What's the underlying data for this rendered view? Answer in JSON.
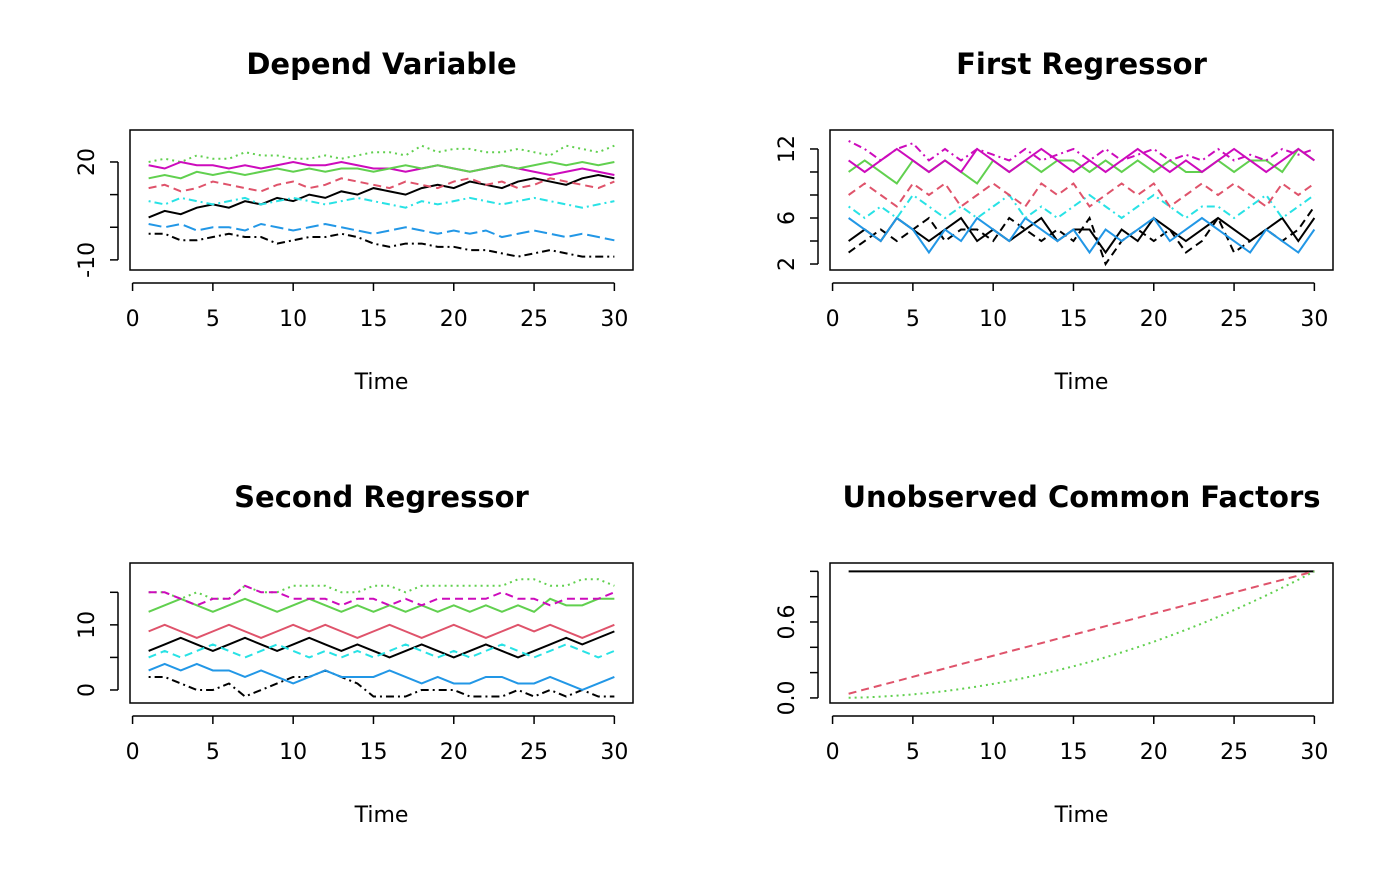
{
  "chart_data": [
    {
      "type": "line",
      "title": "Depend Variable",
      "x_label": "Time",
      "x": [
        1,
        2,
        3,
        4,
        5,
        6,
        7,
        8,
        9,
        10,
        11,
        12,
        13,
        14,
        15,
        16,
        17,
        18,
        19,
        20,
        21,
        22,
        23,
        24,
        25,
        26,
        27,
        28,
        29,
        30
      ],
      "xlim": [
        -0.16,
        31.16
      ],
      "xticks": [
        0,
        5,
        10,
        15,
        20,
        25,
        30
      ],
      "ylim": [
        -13.1,
        29.8
      ],
      "yticks": [
        -10,
        20
      ],
      "yminor_ticks": [
        0,
        10
      ],
      "series": [
        {
          "color": "#000000",
          "dash": "solid",
          "values": [
            3,
            5,
            4,
            6,
            7,
            6,
            8,
            7,
            9,
            8,
            10,
            9,
            11,
            10,
            12,
            11,
            10,
            12,
            13,
            12,
            14,
            13,
            12,
            14,
            15,
            14,
            13,
            15,
            16,
            15
          ]
        },
        {
          "color": "#DF536B",
          "dash": "dashed",
          "values": [
            12,
            13,
            11,
            12,
            14,
            13,
            12,
            11,
            13,
            14,
            12,
            13,
            15,
            14,
            13,
            12,
            14,
            13,
            12,
            14,
            15,
            13,
            14,
            12,
            13,
            15,
            14,
            13,
            12,
            14
          ]
        },
        {
          "color": "#61D04F",
          "dash": "dotted",
          "values": [
            20,
            21,
            20,
            22,
            21,
            21,
            23,
            22,
            22,
            21,
            21,
            22,
            21,
            22,
            23,
            23,
            22,
            25,
            23,
            24,
            24,
            23,
            23,
            24,
            23,
            22,
            25,
            24,
            23,
            25
          ]
        },
        {
          "color": "#2297E6",
          "dash": "longdash",
          "values": [
            1,
            0,
            1,
            -1,
            0,
            0,
            -1,
            1,
            0,
            -1,
            0,
            1,
            0,
            -1,
            -2,
            -1,
            0,
            -1,
            -2,
            -1,
            -2,
            -1,
            -3,
            -2,
            -1,
            -2,
            -3,
            -2,
            -3,
            -4
          ]
        },
        {
          "color": "#28E2E5",
          "dash": "dotdash",
          "values": [
            8,
            7,
            9,
            8,
            7,
            8,
            9,
            7,
            8,
            9,
            8,
            7,
            8,
            9,
            8,
            7,
            6,
            8,
            7,
            8,
            9,
            8,
            7,
            8,
            9,
            8,
            7,
            6,
            7,
            8
          ]
        },
        {
          "color": "#CD0BBC",
          "dash": "solid",
          "values": [
            19,
            18,
            20,
            19,
            19,
            18,
            19,
            18,
            19,
            20,
            19,
            19,
            20,
            19,
            18,
            18,
            17,
            18,
            19,
            18,
            17,
            18,
            19,
            18,
            17,
            16,
            17,
            18,
            17,
            16
          ]
        },
        {
          "color": "#000000",
          "dash": "dotdash",
          "values": [
            -2,
            -2,
            -4,
            -4,
            -3,
            -2,
            -3,
            -3,
            -5,
            -4,
            -3,
            -3,
            -2,
            -3,
            -5,
            -6,
            -5,
            -5,
            -6,
            -6,
            -7,
            -7,
            -8,
            -9,
            -8,
            -7,
            -8,
            -9,
            -9,
            -9
          ]
        },
        {
          "color": "#61D04F",
          "dash": "solid",
          "values": [
            15,
            16,
            15,
            17,
            16,
            17,
            16,
            17,
            18,
            17,
            18,
            17,
            18,
            18,
            17,
            18,
            19,
            18,
            19,
            18,
            17,
            18,
            19,
            18,
            19,
            20,
            19,
            20,
            19,
            20
          ]
        }
      ]
    },
    {
      "type": "line",
      "title": "First Regressor",
      "x_label": "Time",
      "x": [
        1,
        2,
        3,
        4,
        5,
        6,
        7,
        8,
        9,
        10,
        11,
        12,
        13,
        14,
        15,
        16,
        17,
        18,
        19,
        20,
        21,
        22,
        23,
        24,
        25,
        26,
        27,
        28,
        29,
        30
      ],
      "xlim": [
        -0.16,
        31.16
      ],
      "xticks": [
        0,
        5,
        10,
        15,
        20,
        25,
        30
      ],
      "ylim": [
        1.48,
        13.65
      ],
      "yticks": [
        2,
        6,
        12
      ],
      "yminor_ticks": [
        4,
        8,
        10
      ],
      "series": [
        {
          "color": "#000000",
          "dash": "solid",
          "values": [
            4,
            5,
            4,
            6,
            5,
            4,
            5,
            6,
            4,
            5,
            4,
            5,
            6,
            4,
            5,
            5,
            3,
            5,
            4,
            6,
            5,
            4,
            5,
            6,
            5,
            4,
            5,
            6,
            4,
            6
          ]
        },
        {
          "color": "#000000",
          "dash": "dashed",
          "values": [
            3,
            4,
            5,
            4,
            5,
            6,
            4,
            5,
            5,
            4,
            6,
            5,
            4,
            5,
            4,
            6,
            2,
            4,
            5,
            4,
            5,
            3,
            4,
            6,
            3,
            4,
            5,
            4,
            5,
            7
          ]
        },
        {
          "color": "#2297E6",
          "dash": "solid",
          "values": [
            6,
            5,
            4,
            6,
            5,
            3,
            5,
            4,
            6,
            5,
            4,
            6,
            5,
            4,
            5,
            3,
            5,
            4,
            5,
            6,
            4,
            5,
            6,
            5,
            4,
            3,
            5,
            4,
            3,
            5
          ]
        },
        {
          "color": "#28E2E5",
          "dash": "dotdash",
          "values": [
            7,
            6,
            7,
            6,
            8,
            7,
            6,
            7,
            6,
            7,
            8,
            6,
            7,
            6,
            7,
            8,
            7,
            6,
            7,
            8,
            7,
            6,
            7,
            7,
            6,
            7,
            8,
            6,
            7,
            8
          ]
        },
        {
          "color": "#DF536B",
          "dash": "dashed",
          "values": [
            8,
            9,
            8,
            7,
            9,
            8,
            9,
            7,
            8,
            9,
            8,
            7,
            9,
            8,
            9,
            7,
            8,
            9,
            8,
            9,
            7,
            8,
            9,
            8,
            9,
            8,
            7,
            9,
            8,
            9
          ]
        },
        {
          "color": "#61D04F",
          "dash": "solid",
          "values": [
            10,
            11,
            10,
            9,
            11,
            10,
            11,
            10,
            9,
            11,
            10,
            11,
            10,
            11,
            11,
            10,
            11,
            10,
            11,
            10,
            11,
            10,
            10,
            11,
            10,
            11,
            11,
            10,
            12,
            11
          ]
        },
        {
          "color": "#CD0BBC",
          "dash": "solid",
          "values": [
            11,
            10,
            11,
            12,
            11,
            10,
            11,
            10,
            12,
            11,
            10,
            11,
            12,
            11,
            10,
            11,
            10,
            11,
            12,
            11,
            10,
            11,
            10,
            11,
            12,
            11,
            10,
            11,
            12,
            11
          ]
        },
        {
          "color": "#CD0BBC",
          "dash": "dotdash",
          "values": [
            12.7,
            12,
            11,
            12,
            12.5,
            11,
            12,
            11,
            12,
            11.5,
            11,
            12,
            11,
            11.5,
            12,
            11,
            12,
            11,
            11.5,
            12,
            11,
            11.5,
            11,
            12,
            11,
            11.5,
            11,
            12,
            11.5,
            12
          ]
        }
      ]
    },
    {
      "type": "line",
      "title": "Second Regressor",
      "x_label": "Time",
      "x": [
        1,
        2,
        3,
        4,
        5,
        6,
        7,
        8,
        9,
        10,
        11,
        12,
        13,
        14,
        15,
        16,
        17,
        18,
        19,
        20,
        21,
        22,
        23,
        24,
        25,
        26,
        27,
        28,
        29,
        30
      ],
      "xlim": [
        -0.16,
        31.16
      ],
      "xticks": [
        0,
        5,
        10,
        15,
        20,
        25,
        30
      ],
      "ylim": [
        -2,
        19.5
      ],
      "yticks": [
        0,
        10
      ],
      "yminor_ticks": [
        5,
        15
      ],
      "series": [
        {
          "color": "#000000",
          "dash": "solid",
          "values": [
            6,
            7,
            8,
            7,
            6,
            7,
            8,
            7,
            6,
            7,
            8,
            7,
            6,
            7,
            6,
            5,
            6,
            7,
            6,
            5,
            6,
            7,
            6,
            5,
            6,
            7,
            8,
            7,
            8,
            9
          ]
        },
        {
          "color": "#000000",
          "dash": "dotdash",
          "values": [
            2,
            2,
            1,
            0,
            0,
            1,
            -1,
            0,
            1,
            2,
            2,
            3,
            2,
            1,
            -1,
            -1,
            -1,
            0,
            0,
            0,
            -1,
            -1,
            -1,
            0,
            -1,
            0,
            -1,
            0,
            -1,
            -1
          ]
        },
        {
          "color": "#2297E6",
          "dash": "solid",
          "values": [
            3,
            4,
            3,
            4,
            3,
            3,
            2,
            3,
            2,
            1,
            2,
            3,
            2,
            2,
            2,
            3,
            2,
            1,
            2,
            1,
            1,
            2,
            2,
            1,
            1,
            2,
            1,
            0,
            1,
            2
          ]
        },
        {
          "color": "#28E2E5",
          "dash": "dashed",
          "values": [
            5,
            6,
            5,
            6,
            7,
            6,
            5,
            6,
            7,
            6,
            5,
            6,
            5,
            6,
            5,
            6,
            7,
            6,
            5,
            6,
            5,
            6,
            7,
            6,
            5,
            6,
            7,
            6,
            5,
            6
          ]
        },
        {
          "color": "#DF536B",
          "dash": "solid",
          "values": [
            9,
            10,
            9,
            8,
            9,
            10,
            9,
            8,
            9,
            10,
            9,
            10,
            9,
            8,
            9,
            10,
            9,
            8,
            9,
            10,
            9,
            8,
            9,
            10,
            9,
            10,
            9,
            8,
            9,
            10
          ]
        },
        {
          "color": "#61D04F",
          "dash": "solid",
          "values": [
            12,
            13,
            14,
            13,
            12,
            13,
            14,
            13,
            12,
            13,
            14,
            13,
            12,
            13,
            12,
            13,
            12,
            13,
            12,
            13,
            12,
            13,
            12,
            13,
            12,
            14,
            13,
            13,
            14,
            14
          ]
        },
        {
          "color": "#61D04F",
          "dash": "dotted",
          "values": [
            15,
            15,
            14,
            15,
            14,
            14,
            16,
            15,
            15,
            16,
            16,
            16,
            15,
            15,
            16,
            16,
            15,
            16,
            16,
            16,
            16,
            16,
            16,
            17,
            17,
            16,
            16,
            17,
            17,
            16
          ]
        },
        {
          "color": "#CD0BBC",
          "dash": "dashed",
          "values": [
            15,
            15,
            14,
            13,
            14,
            14,
            16,
            15,
            15,
            14,
            14,
            14,
            13,
            14,
            14,
            13,
            14,
            13,
            14,
            14,
            14,
            14,
            15,
            14,
            14,
            13,
            14,
            14,
            14,
            15
          ]
        }
      ]
    },
    {
      "type": "line",
      "title": "Unobserved Common Factors",
      "x_label": "Time",
      "x": [
        1,
        2,
        3,
        4,
        5,
        6,
        7,
        8,
        9,
        10,
        11,
        12,
        13,
        14,
        15,
        16,
        17,
        18,
        19,
        20,
        21,
        22,
        23,
        24,
        25,
        26,
        27,
        28,
        29,
        30
      ],
      "xlim": [
        -0.16,
        31.16
      ],
      "xticks": [
        0,
        5,
        10,
        15,
        20,
        25,
        30
      ],
      "ylim": [
        -0.04,
        1.066
      ],
      "yticks": [
        {
          "value": 0,
          "label": "0.0"
        },
        0.6
      ],
      "yminor_ticks": [
        0.2,
        0.4,
        0.8,
        1
      ],
      "series": [
        {
          "color": "#000000",
          "dash": "solid",
          "values": [
            1,
            1,
            1,
            1,
            1,
            1,
            1,
            1,
            1,
            1,
            1,
            1,
            1,
            1,
            1,
            1,
            1,
            1,
            1,
            1,
            1,
            1,
            1,
            1,
            1,
            1,
            1,
            1,
            1,
            1
          ]
        },
        {
          "color": "#DF536B",
          "dash": "dashed",
          "values": [
            0.033,
            0.067,
            0.1,
            0.133,
            0.167,
            0.2,
            0.233,
            0.267,
            0.3,
            0.333,
            0.367,
            0.4,
            0.433,
            0.467,
            0.5,
            0.533,
            0.567,
            0.6,
            0.633,
            0.667,
            0.7,
            0.733,
            0.767,
            0.8,
            0.833,
            0.867,
            0.9,
            0.933,
            0.967,
            1
          ]
        },
        {
          "color": "#61D04F",
          "dash": "dotted",
          "values": [
            0.001,
            0.004,
            0.01,
            0.018,
            0.028,
            0.04,
            0.054,
            0.071,
            0.09,
            0.111,
            0.134,
            0.16,
            0.188,
            0.218,
            0.25,
            0.284,
            0.321,
            0.36,
            0.401,
            0.444,
            0.49,
            0.538,
            0.588,
            0.64,
            0.694,
            0.751,
            0.81,
            0.871,
            0.934,
            1
          ]
        }
      ]
    }
  ]
}
